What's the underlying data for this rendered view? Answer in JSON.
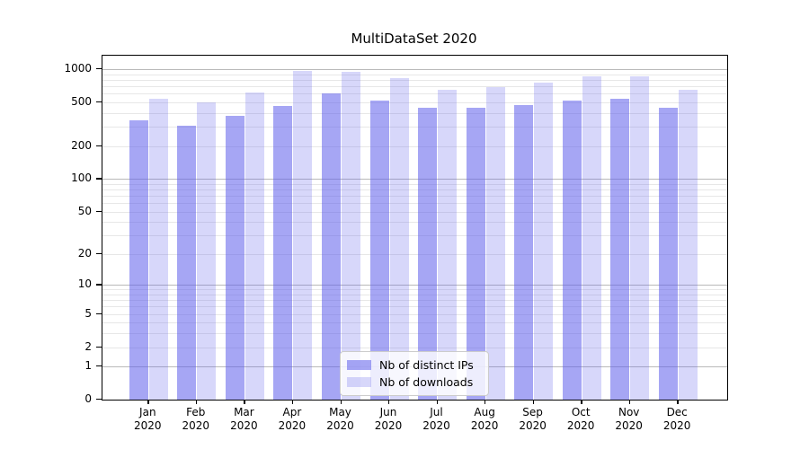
{
  "chart_data": {
    "type": "bar",
    "title": "MultiDataSet 2020",
    "categories": [
      "Jan 2020",
      "Feb 2020",
      "Mar 2020",
      "Apr 2020",
      "May 2020",
      "Jun 2020",
      "Jul 2020",
      "Aug 2020",
      "Sep 2020",
      "Oct 2020",
      "Nov 2020",
      "Dec 2020"
    ],
    "category_months": [
      "Jan",
      "Feb",
      "Mar",
      "Apr",
      "May",
      "Jun",
      "Jul",
      "Aug",
      "Sep",
      "Oct",
      "Nov",
      "Dec"
    ],
    "category_year": "2020",
    "series": [
      {
        "name": "Nb of distinct IPs",
        "color": "rgba(97,97,236,0.56)",
        "values": [
          340,
          305,
          375,
          465,
          600,
          520,
          450,
          445,
          470,
          520,
          535,
          450
        ]
      },
      {
        "name": "Nb of downloads",
        "color": "rgba(97,97,236,0.25)",
        "values": [
          540,
          500,
          610,
          970,
          945,
          830,
          650,
          690,
          755,
          855,
          855,
          650
        ]
      }
    ],
    "xlabel": "",
    "ylabel": "",
    "y_axis": {
      "scale": "log1p",
      "tick_labels": [
        1000,
        500,
        200,
        100,
        50,
        20,
        10,
        5,
        2,
        1,
        0
      ],
      "major_gridlines": [
        1,
        10,
        100,
        1000
      ],
      "top_transform": 3.1227
    },
    "grid": {
      "on": true,
      "major_color": "#b9b9b9",
      "minor_color": "#e7e7e7"
    },
    "legend": {
      "position": "lower center"
    }
  }
}
